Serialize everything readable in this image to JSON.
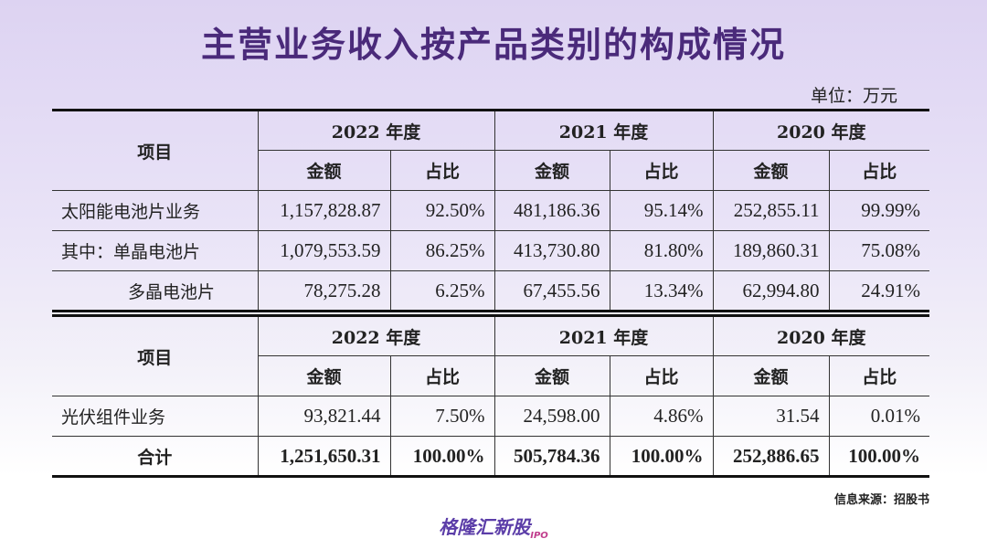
{
  "title": "主营业务收入按产品类别的构成情况",
  "unit": "单位：万元",
  "headers": {
    "item": "项目",
    "years": [
      "2022 年度",
      "2021 年度",
      "2020 年度"
    ],
    "amount": "金额",
    "share": "占比"
  },
  "table1_rows": [
    {
      "label": "太阳能电池片业务",
      "values": [
        "1,157,828.87",
        "92.50%",
        "481,186.36",
        "95.14%",
        "252,855.11",
        "99.99%"
      ]
    },
    {
      "label": "其中：单晶电池片",
      "values": [
        "1,079,553.59",
        "86.25%",
        "413,730.80",
        "81.80%",
        "189,860.31",
        "75.08%"
      ]
    },
    {
      "label": "多晶电池片",
      "values": [
        "78,275.28",
        "6.25%",
        "67,455.56",
        "13.34%",
        "62,994.80",
        "24.91%"
      ]
    }
  ],
  "table2_rows": [
    {
      "label": "光伏组件业务",
      "values": [
        "93,821.44",
        "7.50%",
        "24,598.00",
        "4.86%",
        "31.54",
        "0.01%"
      ]
    },
    {
      "label": "合计",
      "values": [
        "1,251,650.31",
        "100.00%",
        "505,784.36",
        "100.00%",
        "252,886.65",
        "100.00%"
      ]
    }
  ],
  "source": "信息来源：招股书",
  "brand": {
    "name": "格隆汇新股",
    "suffix": "IPO"
  }
}
